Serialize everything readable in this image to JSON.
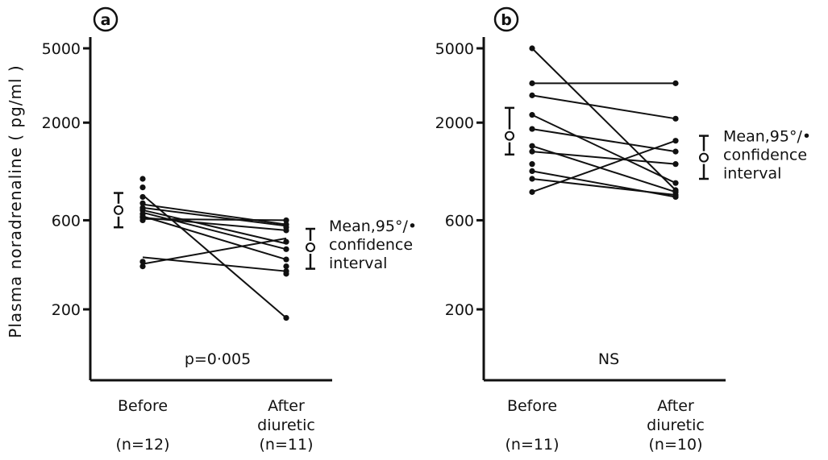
{
  "figure": {
    "ylabel": "Plasma noradrenaline ( pg/ml )"
  },
  "chart_data": [
    {
      "type": "scatter",
      "panel_label": "a",
      "ylabel": "Plasma noradrenaline ( pg/ml )",
      "yscale": "log",
      "ylim": [
        100,
        5000
      ],
      "yticks": [
        200,
        600,
        2000,
        5000
      ],
      "ytick_labels": [
        "200",
        "600",
        "2000",
        "5000"
      ],
      "categories": [
        "Before",
        "After diuretic"
      ],
      "category_lines": [
        [
          "Before"
        ],
        [
          "After",
          "diuretic"
        ]
      ],
      "n_labels": [
        "(n=12)",
        "(n=11)"
      ],
      "before": [
        1000,
        900,
        800,
        740,
        700,
        680,
        650,
        630,
        620,
        600,
        360,
        340
      ],
      "after": [
        600,
        570,
        550,
        530,
        460,
        420,
        370,
        340,
        320,
        310,
        180
      ],
      "pairs": [
        [
          820,
          180
        ],
        [
          730,
          570
        ],
        [
          700,
          560
        ],
        [
          680,
          450
        ],
        [
          660,
          420
        ],
        [
          630,
          370
        ],
        [
          620,
          530
        ],
        [
          610,
          600
        ],
        [
          380,
          320
        ],
        [
          350,
          480
        ]
      ],
      "summary_before": {
        "mean": 680,
        "ci": [
          550,
          840
        ]
      },
      "summary_after": {
        "mean": 430,
        "ci": [
          330,
          540
        ]
      },
      "annotation": "p=0·005",
      "mean_label": [
        "Mean,95°/•",
        "confidence",
        "interval"
      ]
    },
    {
      "type": "scatter",
      "panel_label": "b",
      "yscale": "log",
      "ylim": [
        100,
        5000
      ],
      "yticks": [
        200,
        600,
        2000,
        5000
      ],
      "ytick_labels": [
        "200",
        "600",
        "2000",
        "5000"
      ],
      "categories": [
        "Before",
        "After diuretic"
      ],
      "category_lines": [
        [
          "Before"
        ],
        [
          "After",
          "diuretic"
        ]
      ],
      "n_labels": [
        "(n=11)",
        "(n=10)"
      ],
      "before": [
        5000,
        3250,
        2800,
        2200,
        1850,
        1500,
        1400,
        1200,
        1100,
        1000,
        850
      ],
      "after": [
        3250,
        2100,
        1600,
        1400,
        1200,
        950,
        870,
        850,
        820,
        800
      ],
      "pairs": [
        [
          5000,
          870
        ],
        [
          3250,
          3250
        ],
        [
          2800,
          2100
        ],
        [
          2200,
          950
        ],
        [
          1850,
          1400
        ],
        [
          1500,
          850
        ],
        [
          1400,
          1200
        ],
        [
          1100,
          800
        ],
        [
          1000,
          820
        ],
        [
          850,
          1600
        ]
      ],
      "summary_before": {
        "mean": 1700,
        "ci": [
          1350,
          2400
        ]
      },
      "summary_after": {
        "mean": 1300,
        "ci": [
          1000,
          1700
        ]
      },
      "annotation": "NS",
      "mean_label": [
        "Mean,95°/•",
        "confidence",
        "interval"
      ]
    }
  ]
}
